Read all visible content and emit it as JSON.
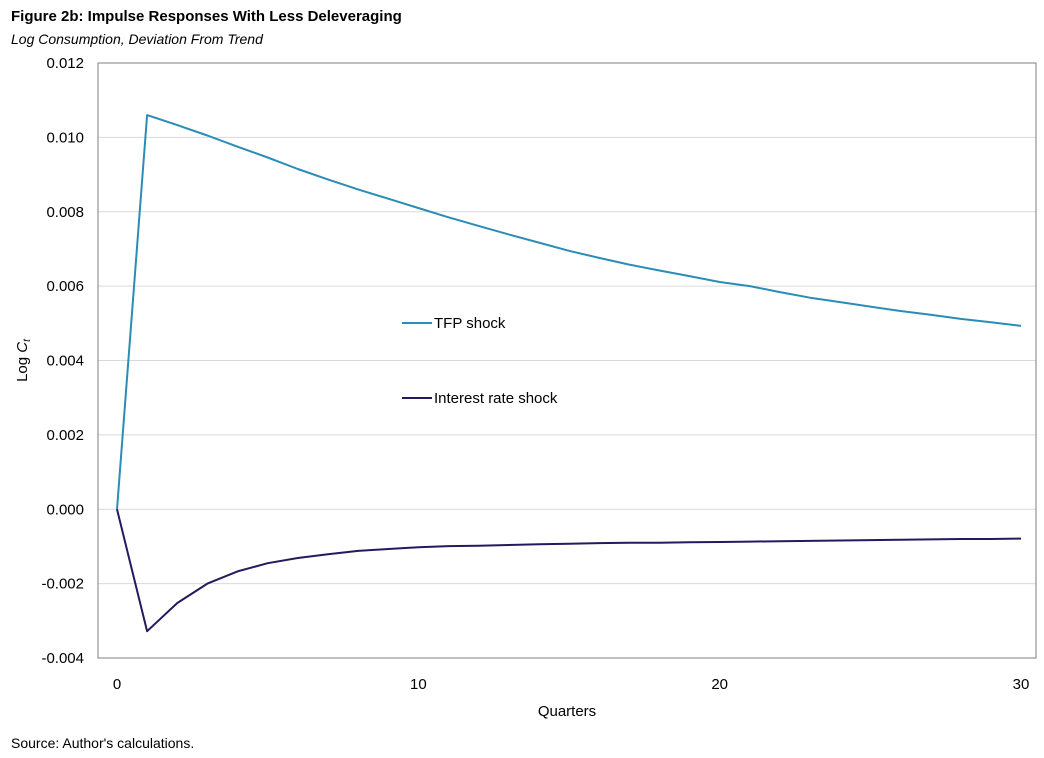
{
  "header": {
    "title": "Figure 2b: Impulse Responses With Less Deleveraging",
    "subtitle": "Log Consumption, Deviation From Trend"
  },
  "footer": {
    "source": "Source: Author's calculations."
  },
  "colors": {
    "tfp": "#2b8cb6",
    "interest": "#241a5e",
    "grid": "#d9d9d9",
    "axis": "#7f7f7f"
  },
  "chart_data": {
    "type": "line",
    "title": "Figure 2b: Impulse Responses With Less Deleveraging",
    "subtitle": "Log Consumption, Deviation From Trend",
    "xlabel": "Quarters",
    "ylabel_prefix": "Log ",
    "ylabel_var": "C",
    "ylabel_sub": "t",
    "xlim": [
      0,
      30
    ],
    "ylim": [
      -0.004,
      0.012
    ],
    "xticks": [
      0,
      10,
      20,
      30
    ],
    "xtick_labels": [
      "0",
      "10",
      "20",
      "30"
    ],
    "yticks": [
      -0.004,
      -0.002,
      0.0,
      0.002,
      0.004,
      0.006,
      0.008,
      0.01,
      0.012
    ],
    "ytick_labels": [
      "-0.004",
      "-0.002",
      "0.000",
      "0.002",
      "0.004",
      "0.006",
      "0.008",
      "0.010",
      "0.012"
    ],
    "grid": true,
    "legend_position": "center",
    "x": [
      0,
      1,
      2,
      3,
      4,
      5,
      6,
      7,
      8,
      9,
      10,
      11,
      12,
      13,
      14,
      15,
      16,
      17,
      18,
      19,
      20,
      21,
      22,
      23,
      24,
      25,
      26,
      27,
      28,
      29,
      30
    ],
    "series": [
      {
        "name": "TFP shock",
        "color": "#2b8cb6",
        "values": [
          0.0,
          0.0106,
          0.01033,
          0.01005,
          0.00975,
          0.00946,
          0.00915,
          0.00887,
          0.0086,
          0.00835,
          0.0081,
          0.00785,
          0.00762,
          0.00739,
          0.00717,
          0.00695,
          0.00676,
          0.00658,
          0.00642,
          0.00627,
          0.00611,
          0.006,
          0.00584,
          0.00569,
          0.00557,
          0.00545,
          0.00533,
          0.00523,
          0.00512,
          0.00503,
          0.00493
        ]
      },
      {
        "name": "Interest rate shock",
        "color": "#241a5e",
        "values": [
          0.0,
          -0.00328,
          -0.00252,
          -0.002,
          -0.00167,
          -0.00145,
          -0.00131,
          -0.00121,
          -0.00112,
          -0.00107,
          -0.00102,
          -0.00099,
          -0.00098,
          -0.00096,
          -0.00094,
          -0.00093,
          -0.00091,
          -0.0009,
          -0.0009,
          -0.00089,
          -0.00088,
          -0.00087,
          -0.00086,
          -0.00085,
          -0.00084,
          -0.00083,
          -0.00082,
          -0.00081,
          -0.0008,
          -0.0008,
          -0.00079
        ]
      }
    ]
  }
}
